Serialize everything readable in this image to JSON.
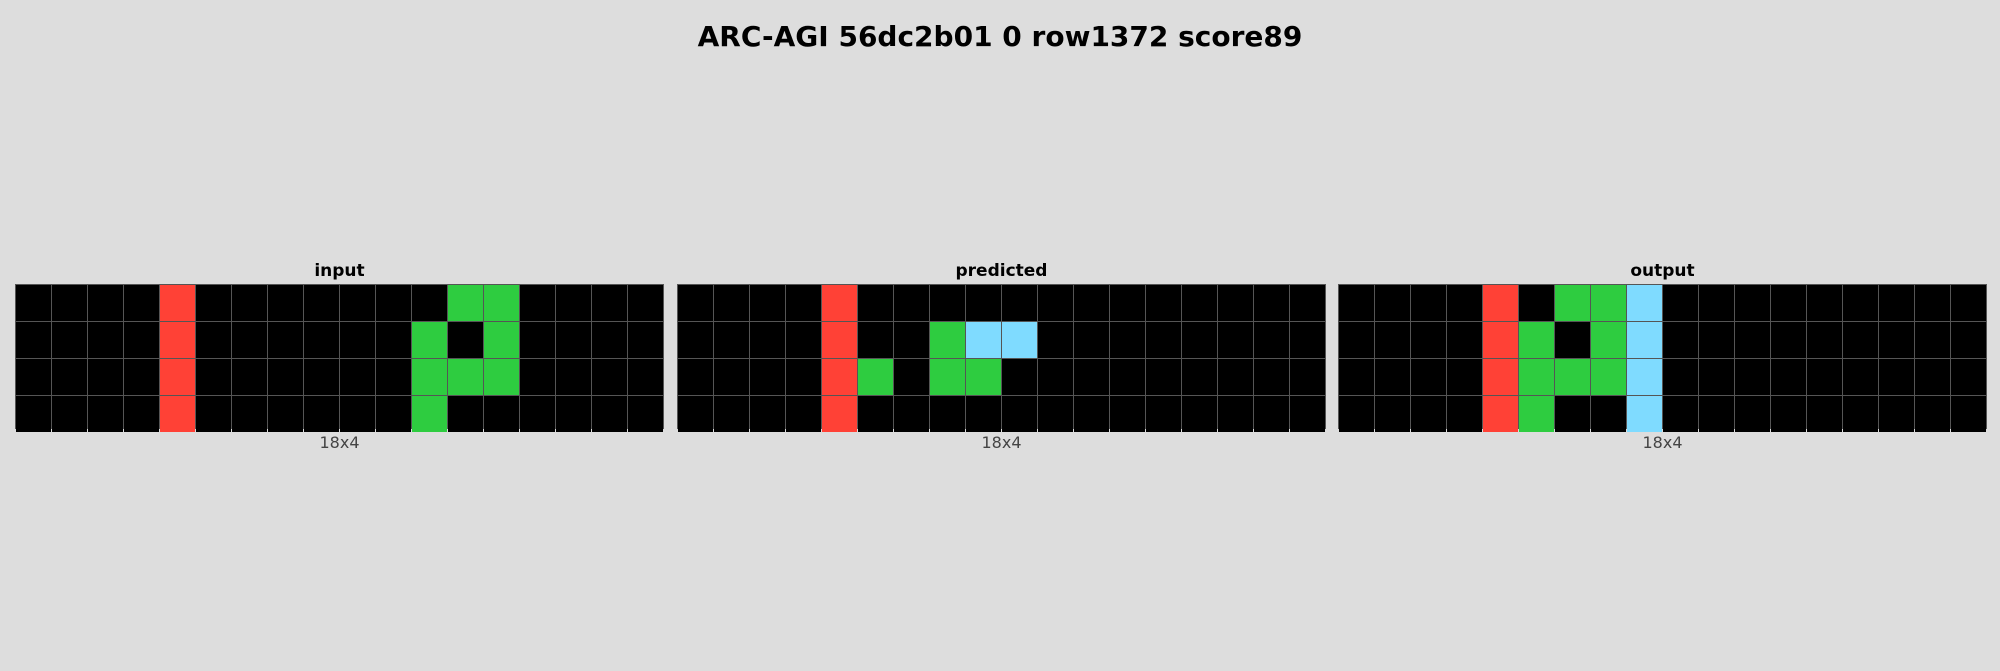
{
  "title": "ARC-AGI 56dc2b01 0 row1372 score89",
  "palette": {
    "0": "#000000",
    "2": "#ff4136",
    "3": "#2ecc40",
    "8": "#7fdbff"
  },
  "panels": [
    {
      "label": "input",
      "dims": "18x4",
      "grid": [
        [
          0,
          0,
          0,
          0,
          2,
          0,
          0,
          0,
          0,
          0,
          0,
          0,
          3,
          3,
          0,
          0,
          0,
          0
        ],
        [
          0,
          0,
          0,
          0,
          2,
          0,
          0,
          0,
          0,
          0,
          0,
          3,
          0,
          3,
          0,
          0,
          0,
          0
        ],
        [
          0,
          0,
          0,
          0,
          2,
          0,
          0,
          0,
          0,
          0,
          0,
          3,
          3,
          3,
          0,
          0,
          0,
          0
        ],
        [
          0,
          0,
          0,
          0,
          2,
          0,
          0,
          0,
          0,
          0,
          0,
          3,
          0,
          0,
          0,
          0,
          0,
          0
        ]
      ]
    },
    {
      "label": "predicted",
      "dims": "18x4",
      "grid": [
        [
          0,
          0,
          0,
          0,
          2,
          0,
          0,
          0,
          0,
          0,
          0,
          0,
          0,
          0,
          0,
          0,
          0,
          0
        ],
        [
          0,
          0,
          0,
          0,
          2,
          0,
          0,
          3,
          8,
          8,
          0,
          0,
          0,
          0,
          0,
          0,
          0,
          0
        ],
        [
          0,
          0,
          0,
          0,
          2,
          3,
          0,
          3,
          3,
          0,
          0,
          0,
          0,
          0,
          0,
          0,
          0,
          0
        ],
        [
          0,
          0,
          0,
          0,
          2,
          0,
          0,
          0,
          0,
          0,
          0,
          0,
          0,
          0,
          0,
          0,
          0,
          0
        ]
      ]
    },
    {
      "label": "output",
      "dims": "18x4",
      "grid": [
        [
          0,
          0,
          0,
          0,
          2,
          0,
          3,
          3,
          8,
          0,
          0,
          0,
          0,
          0,
          0,
          0,
          0,
          0
        ],
        [
          0,
          0,
          0,
          0,
          2,
          3,
          0,
          3,
          8,
          0,
          0,
          0,
          0,
          0,
          0,
          0,
          0,
          0
        ],
        [
          0,
          0,
          0,
          0,
          2,
          3,
          3,
          3,
          8,
          0,
          0,
          0,
          0,
          0,
          0,
          0,
          0,
          0
        ],
        [
          0,
          0,
          0,
          0,
          2,
          3,
          0,
          0,
          8,
          0,
          0,
          0,
          0,
          0,
          0,
          0,
          0,
          0
        ]
      ]
    }
  ]
}
